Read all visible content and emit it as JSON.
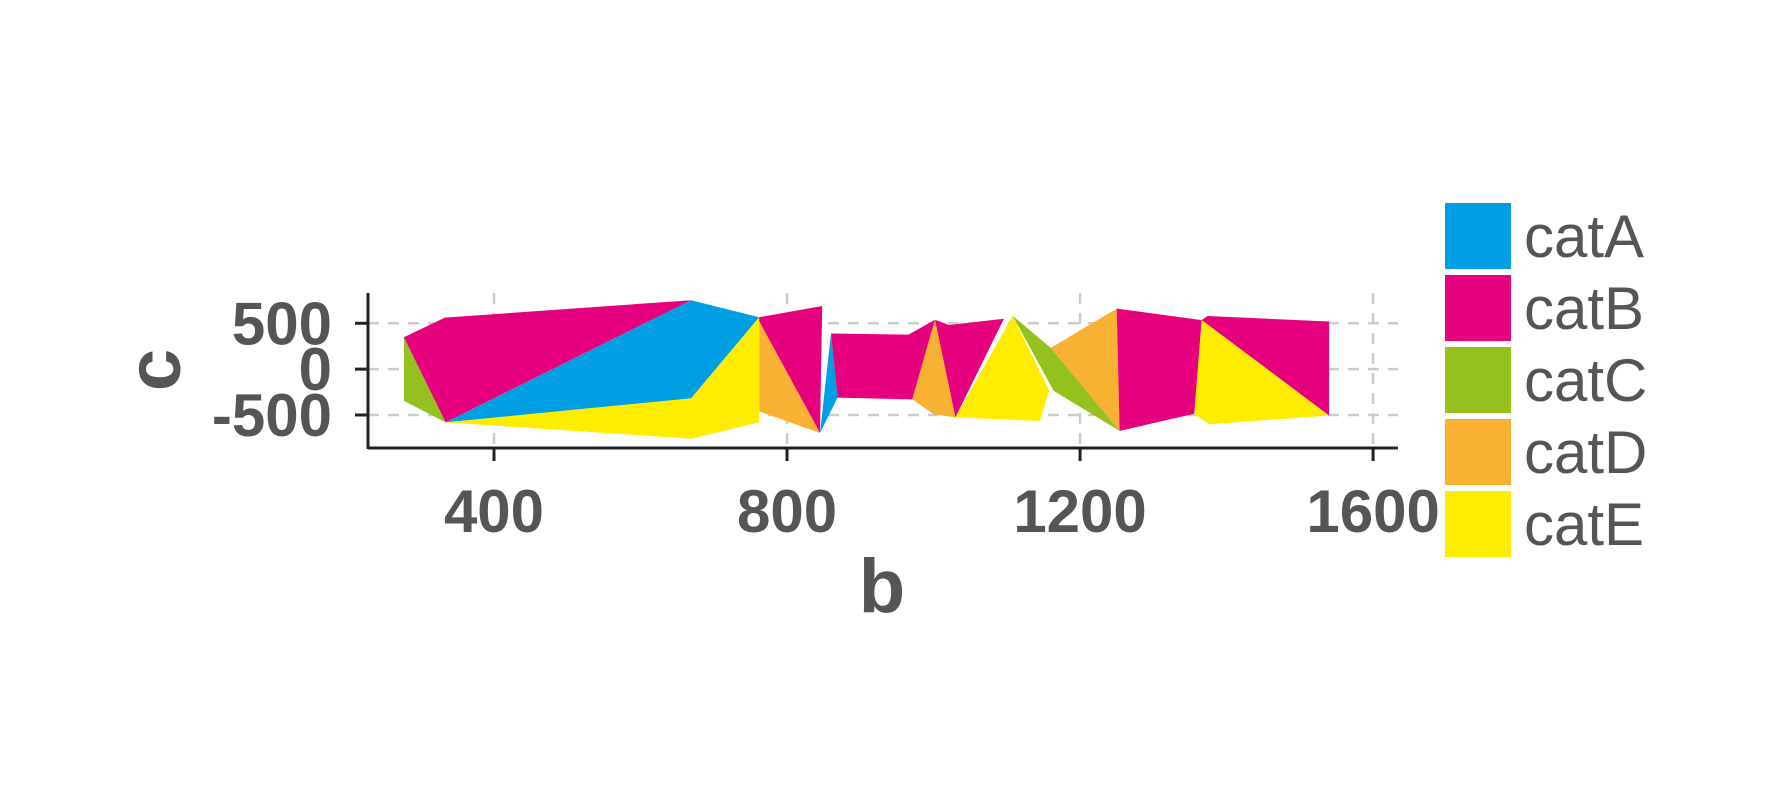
{
  "chart_data": {
    "type": "area",
    "xlabel": "b",
    "ylabel": "c",
    "xlim": [
      228,
      1634
    ],
    "ylim": [
      -860,
      830
    ],
    "xticks": [
      400,
      800,
      1200,
      1600
    ],
    "yticks": [
      500,
      0,
      -500
    ],
    "x_tick_labels": [
      "400",
      "800",
      "1200",
      "1600"
    ],
    "y_tick_labels": [
      "500",
      "0",
      "-500"
    ],
    "grid": true,
    "legend_position": "right",
    "legend": [
      {
        "name": "catA",
        "color": "#009FE3"
      },
      {
        "name": "catB",
        "color": "#E5007D"
      },
      {
        "name": "catC",
        "color": "#95C11F"
      },
      {
        "name": "catD",
        "color": "#F8B133"
      },
      {
        "name": "catE",
        "color": "#FFED00"
      }
    ],
    "polygons": [
      {
        "category": "catC",
        "points": [
          [
            277,
            347
          ],
          [
            334,
            -581
          ],
          [
            277,
            -347
          ]
        ]
      },
      {
        "category": "catB",
        "points": [
          [
            277,
            347
          ],
          [
            333,
            562
          ],
          [
            669,
            751
          ],
          [
            334,
            -581
          ]
        ]
      },
      {
        "category": "catA",
        "points": [
          [
            334,
            -581
          ],
          [
            669,
            751
          ],
          [
            762,
            566
          ],
          [
            669,
            -319
          ]
        ]
      },
      {
        "category": "catE",
        "points": [
          [
            334,
            -581
          ],
          [
            669,
            -319
          ],
          [
            762,
            566
          ],
          [
            762,
            -580
          ],
          [
            669,
            -759
          ]
        ]
      },
      {
        "category": "catB",
        "points": [
          [
            762,
            566
          ],
          [
            848,
            688
          ],
          [
            845,
            -696
          ],
          [
            762,
            521
          ]
        ]
      },
      {
        "category": "catD",
        "points": [
          [
            762,
            521
          ],
          [
            845,
            -696
          ],
          [
            762,
            -461
          ]
        ]
      },
      {
        "category": "catA",
        "points": [
          [
            845,
            -696
          ],
          [
            860,
            388
          ],
          [
            869,
            -311
          ]
        ]
      },
      {
        "category": "catB",
        "points": [
          [
            860,
            388
          ],
          [
            966,
            376
          ],
          [
            1002,
            538
          ],
          [
            971,
            -330
          ],
          [
            869,
            -311
          ]
        ]
      },
      {
        "category": "catD",
        "points": [
          [
            971,
            -330
          ],
          [
            1002,
            538
          ],
          [
            1030,
            -526
          ],
          [
            1000,
            -490
          ]
        ]
      },
      {
        "category": "catB",
        "points": [
          [
            1002,
            538
          ],
          [
            1021,
            481
          ],
          [
            1096,
            550
          ],
          [
            1030,
            -526
          ]
        ]
      },
      {
        "category": "catE",
        "points": [
          [
            1030,
            -526
          ],
          [
            1108,
            581
          ],
          [
            1158,
            -237
          ],
          [
            1145,
            -566
          ]
        ]
      },
      {
        "category": "catC",
        "points": [
          [
            1108,
            581
          ],
          [
            1160,
            231
          ],
          [
            1254,
            -674
          ],
          [
            1164,
            -237
          ]
        ]
      },
      {
        "category": "catD",
        "points": [
          [
            1160,
            231
          ],
          [
            1250,
            660
          ],
          [
            1254,
            -674
          ]
        ]
      },
      {
        "category": "catB",
        "points": [
          [
            1250,
            660
          ],
          [
            1366,
            535
          ],
          [
            1356,
            -487
          ],
          [
            1254,
            -674
          ]
        ]
      },
      {
        "category": "catB",
        "points": [
          [
            1366,
            535
          ],
          [
            1374,
            579
          ],
          [
            1540,
            519
          ],
          [
            1540,
            -507
          ]
        ]
      },
      {
        "category": "catE",
        "points": [
          [
            1366,
            535
          ],
          [
            1540,
            -507
          ],
          [
            1376,
            -602
          ],
          [
            1356,
            -487
          ]
        ]
      }
    ]
  }
}
